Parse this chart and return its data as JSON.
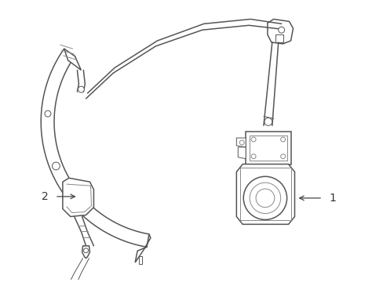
{
  "background_color": "#ffffff",
  "line_color": "#555555",
  "line_color_light": "#888888",
  "label_color": "#333333",
  "fig_width": 4.89,
  "fig_height": 3.6,
  "dpi": 100,
  "label1": "1",
  "label2": "2",
  "arrow_color": "#444444"
}
